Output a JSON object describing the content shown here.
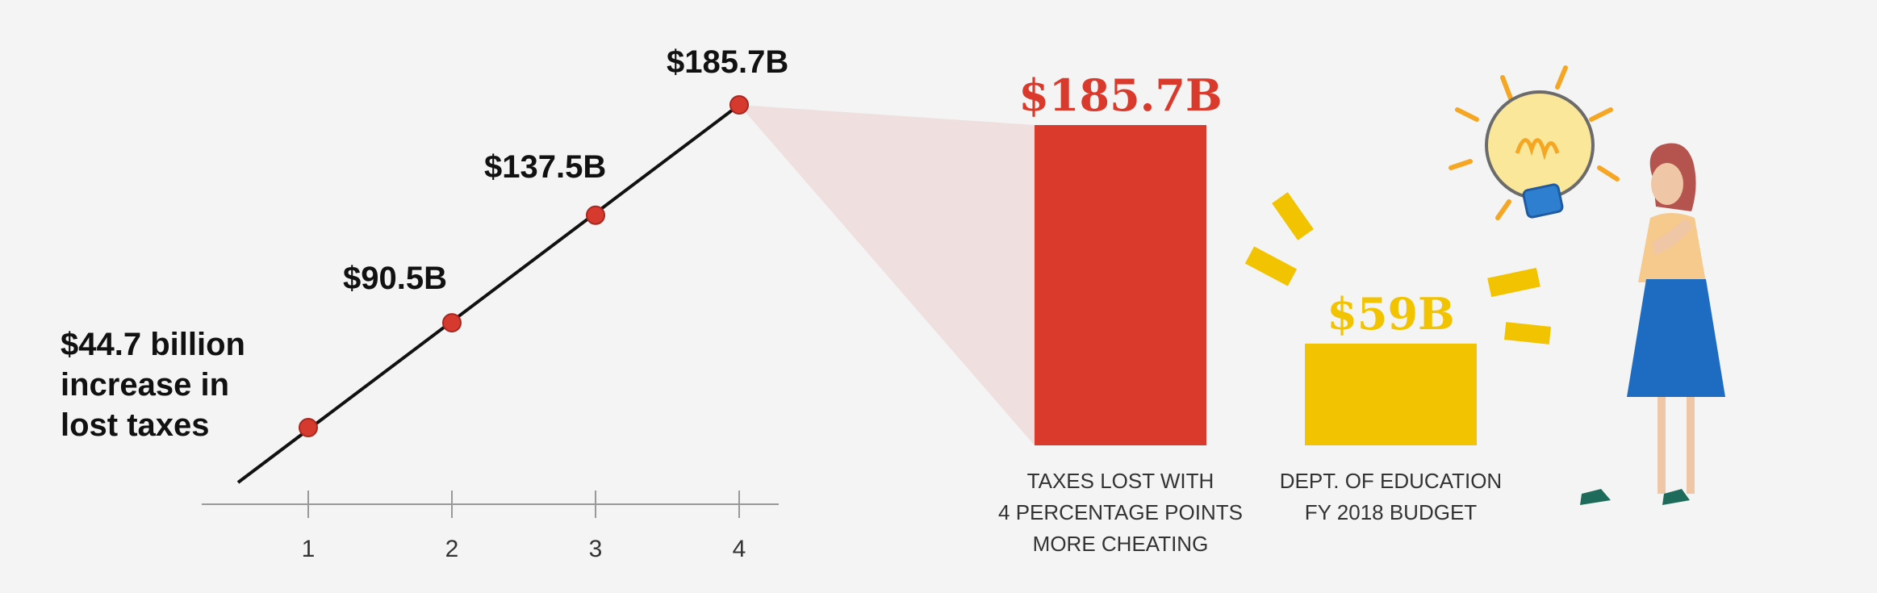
{
  "chart_data": [
    {
      "type": "line",
      "x": [
        1,
        2,
        3,
        4
      ],
      "y": [
        44.7,
        90.5,
        137.5,
        185.7
      ],
      "xticks": [
        "1",
        "2",
        "3",
        "4"
      ],
      "point_labels": [
        "$44.7 billion\nincrease in\nlost taxes",
        "$90.5B",
        "$137.5B",
        "$185.7B"
      ],
      "grid": false,
      "marker_color": "#d63a2f",
      "line_color": "#111111"
    },
    {
      "type": "bar",
      "categories": [
        "TAXES LOST WITH\n4 PERCENTAGE POINTS\nMORE CHEATING",
        "DEPT. OF EDUCATION\nFY 2018 BUDGET"
      ],
      "values": [
        185.7,
        59
      ],
      "value_labels": [
        "$185.7B",
        "$59B"
      ],
      "colors": [
        "#d93a2b",
        "#f2c300"
      ]
    }
  ],
  "colors": {
    "background": "#f4f4f4",
    "red": "#d93a2b",
    "yellow": "#f2c300",
    "axis": "#999999"
  },
  "illustration": "woman-thinking-with-lightbulb-icon"
}
